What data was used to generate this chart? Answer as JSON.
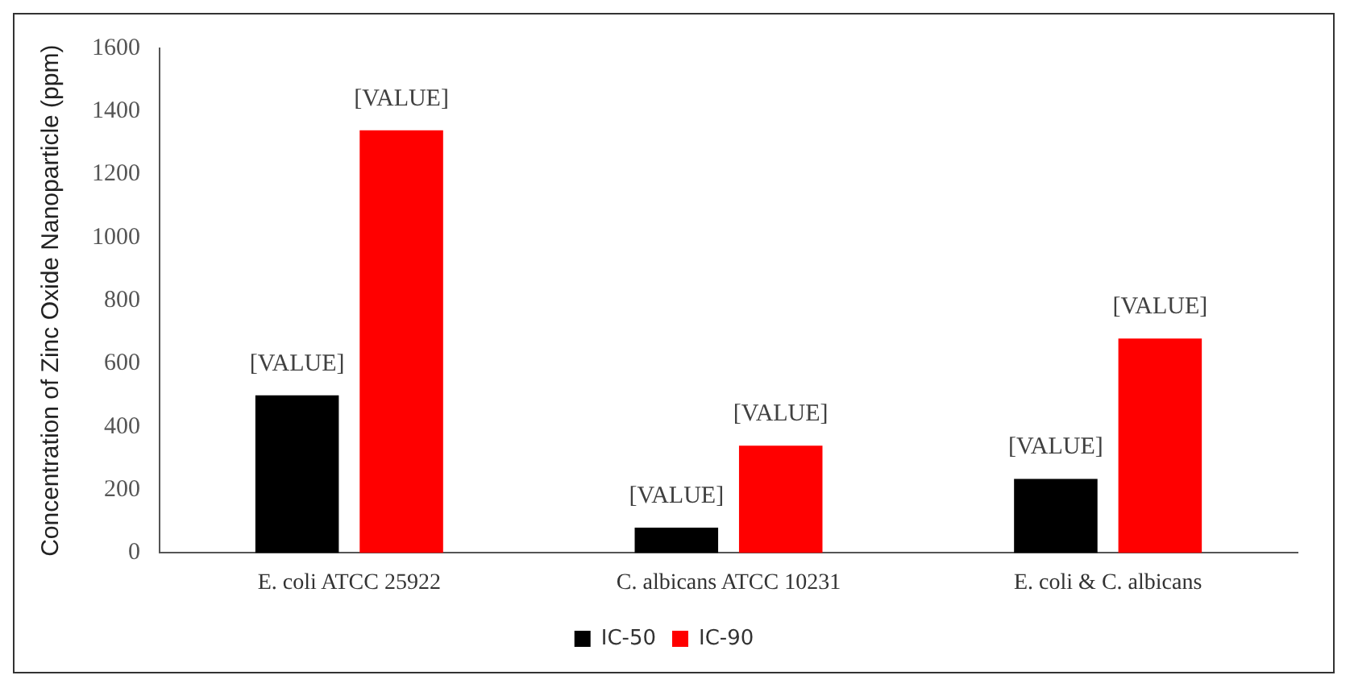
{
  "chart_data": {
    "type": "bar",
    "ylabel": "Concentration of Zinc Oxide Nanoparticle (ppm)",
    "categories": [
      "E. coli ATCC 25922",
      "C. albicans ATCC 10231",
      "E. coli & C. albicans"
    ],
    "series": [
      {
        "name": "IC-50",
        "color": "#000000",
        "values": [
          500,
          80,
          235
        ],
        "value_labels": [
          "[VALUE]",
          "[VALUE]",
          "[VALUE]"
        ]
      },
      {
        "name": "IC-90",
        "color": "#ff0000",
        "values": [
          1340,
          340,
          680
        ],
        "value_labels": [
          "[VALUE]",
          "[VALUE]",
          "[VALUE]"
        ]
      }
    ],
    "ylim": [
      0,
      1600
    ],
    "yticks": [
      0,
      200,
      400,
      600,
      800,
      1000,
      1200,
      1400,
      1600
    ],
    "grid": false,
    "legend": "bottom"
  }
}
